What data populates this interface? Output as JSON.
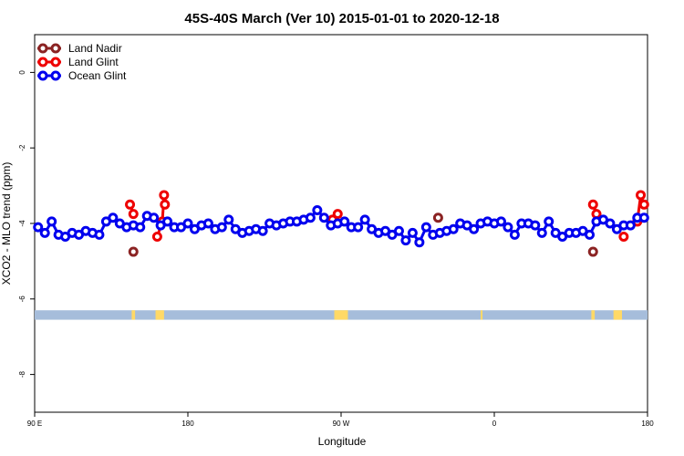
{
  "chart_data": {
    "type": "line",
    "title": "45S-40S March (Ver 10)   2015-01-01 to 2020-12-18",
    "xlabel": "Longitude",
    "ylabel": "XCO2 - MLO trend (ppm)",
    "xlim": [
      90,
      450
    ],
    "ylim": [
      -9,
      1
    ],
    "x_ticks": [
      {
        "value": 90,
        "label": "90 E"
      },
      {
        "value": 180,
        "label": "180"
      },
      {
        "value": 270,
        "label": "90 W"
      },
      {
        "value": 360,
        "label": "0"
      },
      {
        "value": 450,
        "label": "180"
      }
    ],
    "y_ticks": [
      {
        "value": 0,
        "label": "0"
      },
      {
        "value": -2,
        "label": "-2"
      },
      {
        "value": -4,
        "label": "-4"
      },
      {
        "value": -6,
        "label": "-6"
      },
      {
        "value": -8,
        "label": "-8"
      }
    ],
    "legend_position": "top-left",
    "band": {
      "y_range": [
        -6.3,
        -6.55
      ],
      "ocean_color": "#a6bddb",
      "land_color": "#ffd966",
      "land_spans": [
        [
          147,
          149
        ],
        [
          161,
          166
        ],
        [
          266,
          274
        ],
        [
          352,
          352.5
        ],
        [
          417,
          419
        ],
        [
          430,
          435
        ]
      ]
    },
    "series": [
      {
        "name": "Land Nadir",
        "color": "#8b2323",
        "x": [
          148,
          265,
          327,
          418
        ],
        "y": [
          -4.75,
          -3.9,
          -3.85,
          -4.75
        ]
      },
      {
        "name": "Land Glint",
        "color": "#ee0000",
        "x": [
          146,
          148,
          162,
          165,
          166,
          166.5,
          265,
          268,
          418,
          420,
          436,
          444,
          446,
          448
        ],
        "y": [
          -3.5,
          -3.75,
          -4.35,
          -3.95,
          -3.25,
          -3.5,
          -3.9,
          -3.75,
          -3.5,
          -3.75,
          -4.35,
          -3.95,
          -3.25,
          -3.5
        ]
      },
      {
        "name": "Ocean Glint",
        "color": "#0000ee",
        "x": [
          92,
          96,
          100,
          104,
          108,
          112,
          116,
          120,
          124,
          128,
          132,
          136,
          140,
          144,
          148,
          152,
          156,
          160,
          164,
          168,
          172,
          176,
          180,
          184,
          188,
          192,
          196,
          200,
          204,
          208,
          212,
          216,
          220,
          224,
          228,
          232,
          236,
          240,
          244,
          248,
          252,
          256,
          260,
          264,
          268,
          272,
          276,
          280,
          284,
          288,
          292,
          296,
          300,
          304,
          308,
          312,
          316,
          320,
          324,
          328,
          332,
          336,
          340,
          344,
          348,
          352,
          356,
          360,
          364,
          368,
          372,
          376,
          380,
          384,
          388,
          392,
          396,
          400,
          404,
          408,
          412,
          416,
          420,
          424,
          428,
          432,
          436,
          440,
          444,
          448
        ],
        "y": [
          -4.1,
          -4.25,
          -3.95,
          -4.3,
          -4.35,
          -4.25,
          -4.3,
          -4.2,
          -4.25,
          -4.3,
          -3.95,
          -3.85,
          -4.0,
          -4.1,
          -4.05,
          -4.1,
          -3.8,
          -3.85,
          -4.05,
          -3.95,
          -4.1,
          -4.1,
          -4.0,
          -4.15,
          -4.05,
          -4.0,
          -4.15,
          -4.1,
          -3.9,
          -4.15,
          -4.25,
          -4.2,
          -4.15,
          -4.2,
          -4.0,
          -4.05,
          -4.0,
          -3.95,
          -3.95,
          -3.9,
          -3.85,
          -3.65,
          -3.85,
          -4.05,
          -4.0,
          -3.95,
          -4.1,
          -4.1,
          -3.9,
          -4.15,
          -4.25,
          -4.2,
          -4.3,
          -4.2,
          -4.45,
          -4.25,
          -4.5,
          -4.1,
          -4.3,
          -4.25,
          -4.2,
          -4.15,
          -4.0,
          -4.05,
          -4.15,
          -4.0,
          -3.95,
          -4.0,
          -3.95,
          -4.1,
          -4.3,
          -4.0,
          -4.0,
          -4.05,
          -4.25,
          -3.95,
          -4.25,
          -4.35,
          -4.25,
          -4.25,
          -4.2,
          -4.3,
          -3.95,
          -3.9,
          -4.0,
          -4.15,
          -4.05,
          -4.05,
          -3.85,
          -3.85
        ]
      }
    ]
  }
}
